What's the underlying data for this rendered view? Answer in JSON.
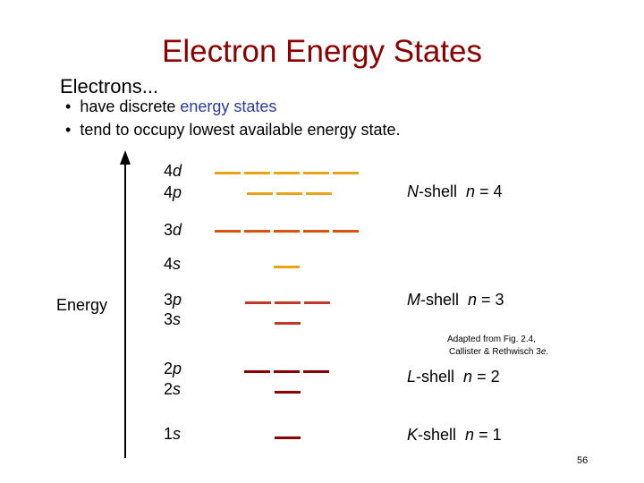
{
  "title": "Electron Energy States",
  "intro": "Electrons...",
  "bullets": [
    {
      "before": "have discrete ",
      "highlight": "energy states"
    },
    {
      "before": "tend to occupy lowest available energy state."
    }
  ],
  "axis_label": "Energy",
  "orbitals": [
    {
      "n": "4",
      "l": "d"
    },
    {
      "n": "4",
      "l": "p"
    },
    {
      "n": "3",
      "l": "d"
    },
    {
      "n": "4",
      "l": "s"
    },
    {
      "n": "3",
      "l": "p"
    },
    {
      "n": "3",
      "l": "s"
    },
    {
      "n": "2",
      "l": "p"
    },
    {
      "n": "2",
      "l": "s"
    },
    {
      "n": "1",
      "l": "s"
    }
  ],
  "shells": [
    {
      "letter": "N",
      "suffix": "-shell",
      "var": "n",
      "eq": " = 4"
    },
    {
      "letter": "M",
      "suffix": "-shell",
      "var": "n",
      "eq": " = 3"
    },
    {
      "letter": "L",
      "suffix": "-shell",
      "var": "n",
      "eq": " = 2"
    },
    {
      "letter": "K",
      "suffix": "-shell",
      "var": "n",
      "eq": " = 1"
    }
  ],
  "note": {
    "line1": "Adapted from Fig. 2.4,",
    "line2": "Callister & Rethwisch ",
    "edition_num": "3",
    "edition_suffix": "e",
    "end": "."
  },
  "page_number": "56"
}
